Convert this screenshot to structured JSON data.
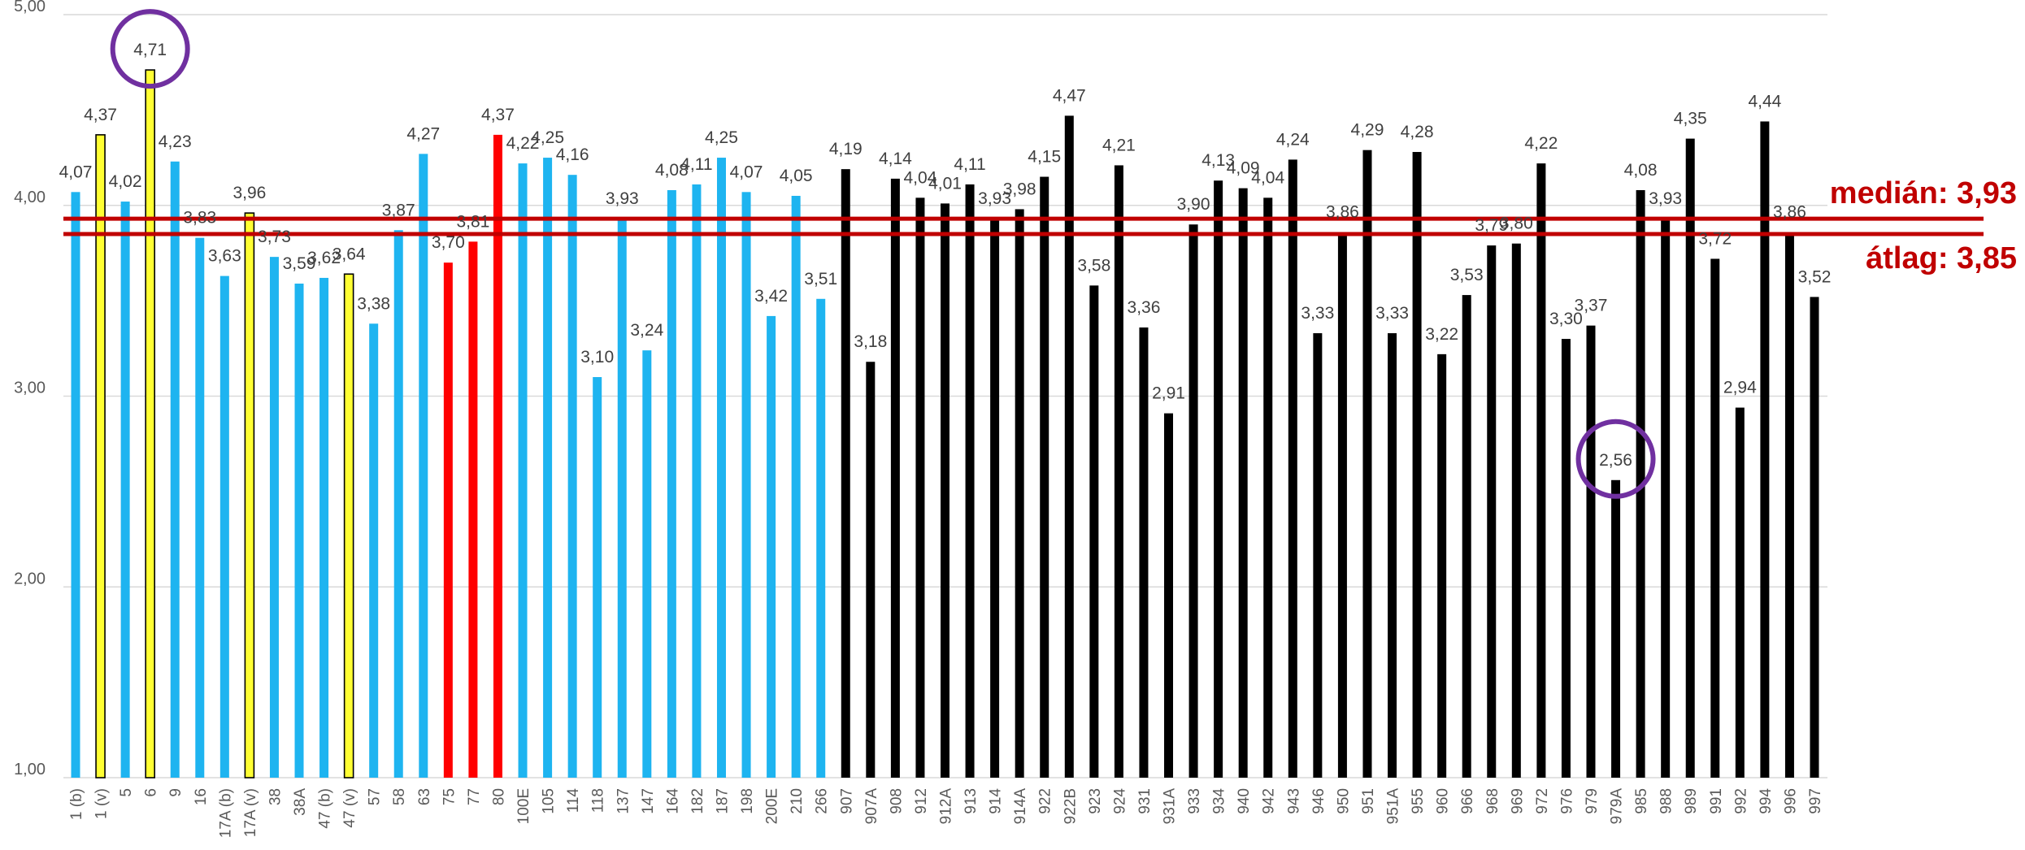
{
  "chart_data": {
    "type": "bar",
    "ylim": [
      1.0,
      5.0
    ],
    "yticks": [
      "1,00",
      "2,00",
      "3,00",
      "4,00",
      "5,00"
    ],
    "ytick_values": [
      1,
      2,
      3,
      4,
      5
    ],
    "grid": true,
    "categories": [
      "1 (b)",
      "1 (v)",
      "5",
      "6",
      "9",
      "16",
      "17A (b)",
      "17A (v)",
      "38",
      "38A",
      "47 (b)",
      "47 (v)",
      "57",
      "58",
      "63",
      "75",
      "77",
      "80",
      "100E",
      "105",
      "114",
      "118",
      "137",
      "147",
      "164",
      "182",
      "187",
      "198",
      "200E",
      "210",
      "266",
      "907",
      "907A",
      "908",
      "912",
      "912A",
      "913",
      "914",
      "914A",
      "922",
      "922B",
      "923",
      "924",
      "931",
      "931A",
      "933",
      "934",
      "940",
      "942",
      "943",
      "946",
      "950",
      "951",
      "951A",
      "955",
      "960",
      "966",
      "968",
      "969",
      "972",
      "976",
      "979",
      "979A",
      "985",
      "988",
      "989",
      "991",
      "992",
      "994",
      "996",
      "997"
    ],
    "values": [
      4.07,
      4.37,
      4.02,
      4.71,
      4.23,
      3.83,
      3.63,
      3.96,
      3.73,
      3.59,
      3.62,
      3.64,
      3.38,
      3.87,
      4.27,
      3.7,
      3.81,
      4.37,
      4.22,
      4.25,
      4.16,
      3.1,
      3.93,
      3.24,
      4.08,
      4.11,
      4.25,
      4.07,
      3.42,
      4.05,
      3.51,
      4.19,
      3.18,
      4.14,
      4.04,
      4.01,
      4.11,
      3.93,
      3.98,
      4.15,
      4.47,
      3.58,
      4.21,
      3.36,
      2.91,
      3.9,
      4.13,
      4.09,
      4.04,
      4.24,
      3.33,
      3.86,
      4.29,
      3.33,
      4.28,
      3.22,
      3.53,
      3.79,
      3.8,
      4.22,
      3.3,
      3.37,
      2.56,
      4.08,
      3.93,
      4.35,
      3.72,
      2.94,
      4.44,
      3.86,
      3.52
    ],
    "labels": [
      "4,07",
      "4,37",
      "4,02",
      "4,71",
      "4,23",
      "3,83",
      "3,63",
      "3,96",
      "3,73",
      "3,59",
      "3,62",
      "3,64",
      "3,38",
      "3,87",
      "4,27",
      "3,70",
      "3,81",
      "4,37",
      "4,22",
      "4,25",
      "4,16",
      "3,10",
      "3,93",
      "3,24",
      "4,08",
      "4,11",
      "4,25",
      "4,07",
      "3,42",
      "4,05",
      "3,51",
      "4,19",
      "3,18",
      "4,14",
      "4,04",
      "4,01",
      "4,11",
      "3,93",
      "3,98",
      "4,15",
      "4,47",
      "3,58",
      "4,21",
      "3,36",
      "2,91",
      "3,90",
      "4,13",
      "4,09",
      "4,04",
      "4,24",
      "3,33",
      "3,86",
      "4,29",
      "3,33",
      "4,28",
      "3,22",
      "3,53",
      "3,79",
      "3,80",
      "4,22",
      "3,30",
      "3,37",
      "2,56",
      "4,08",
      "3,93",
      "4,35",
      "3,72",
      "2,94",
      "4,44",
      "3,86",
      "3,52"
    ],
    "colors": [
      "blue",
      "yellow",
      "blue",
      "yellow",
      "blue",
      "blue",
      "blue",
      "yellow",
      "blue",
      "blue",
      "blue",
      "yellow",
      "blue",
      "blue",
      "blue",
      "red",
      "red",
      "red",
      "blue",
      "blue",
      "blue",
      "blue",
      "blue",
      "blue",
      "blue",
      "blue",
      "blue",
      "blue",
      "blue",
      "blue",
      "blue",
      "black",
      "black",
      "black",
      "black",
      "black",
      "black",
      "black",
      "black",
      "black",
      "black",
      "black",
      "black",
      "black",
      "black",
      "black",
      "black",
      "black",
      "black",
      "black",
      "black",
      "black",
      "black",
      "black",
      "black",
      "black",
      "black",
      "black",
      "black",
      "black",
      "black",
      "black",
      "black",
      "black",
      "black",
      "black",
      "black",
      "black",
      "black",
      "black",
      "black"
    ],
    "palette": {
      "blue": "#1EB4F0",
      "yellow": "#FFFF33",
      "red": "#FF0000",
      "black": "#000000",
      "outline": "#000000",
      "grid": "#D9D9D9",
      "reference": "#C00000",
      "highlight": "#7030A0"
    },
    "reference_lines": [
      {
        "label": "medián: 3,93",
        "value": 3.93
      },
      {
        "label": "átlag: 3,85",
        "value": 3.85
      }
    ],
    "highlighted_categories": [
      "6",
      "979A"
    ]
  }
}
